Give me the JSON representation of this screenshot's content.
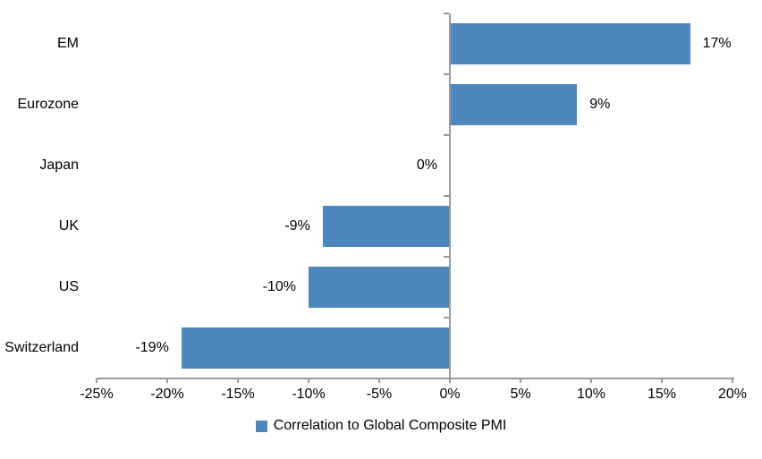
{
  "chart_data": {
    "type": "bar",
    "orientation": "horizontal",
    "title": "",
    "xlabel": "",
    "ylabel": "",
    "categories": [
      "EM",
      "Eurozone",
      "Japan",
      "UK",
      "US",
      "Switzerland"
    ],
    "values": [
      17,
      9,
      0,
      -9,
      -10,
      -19
    ],
    "value_labels": [
      "17%",
      "9%",
      "0%",
      "-9%",
      "-10%",
      "-19%"
    ],
    "xlim": [
      -25,
      20
    ],
    "x_ticks": [
      -25,
      -20,
      -15,
      -10,
      -5,
      0,
      5,
      10,
      15,
      20
    ],
    "x_tick_labels": [
      "-25%",
      "-20%",
      "-15%",
      "-10%",
      "-5%",
      "0%",
      "5%",
      "10%",
      "15%",
      "20%"
    ],
    "grid": false,
    "legend_position": "bottom",
    "legend": "Correlation to Global Composite PMI",
    "bar_color": "#4E86BE",
    "axis_color": "#98999B",
    "text_color": "#000000"
  }
}
